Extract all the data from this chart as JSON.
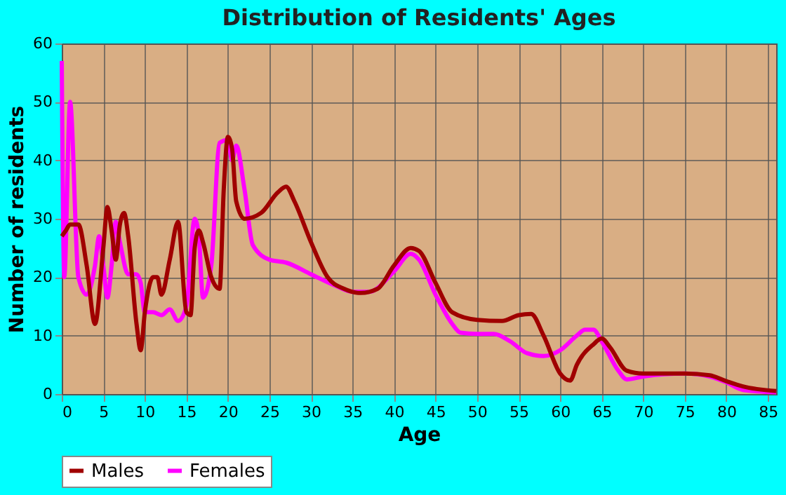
{
  "chart_data": {
    "type": "line",
    "title": "Distribution of Residents' Ages",
    "xlabel": "Age",
    "ylabel": "Number of residents",
    "xlim": [
      0,
      86
    ],
    "xticks": [
      0,
      5,
      10,
      15,
      20,
      25,
      30,
      35,
      40,
      45,
      50,
      55,
      60,
      65,
      70,
      75,
      80,
      85
    ],
    "ylim": [
      0,
      60
    ],
    "yticks": [
      0,
      10,
      20,
      30,
      40,
      50,
      60
    ],
    "grid": true,
    "legend": "bottom",
    "marker": "none",
    "line_style": "solid",
    "series": [
      {
        "name": "Males",
        "color": "#a00000",
        "x": [
          0,
          0.5,
          1,
          2,
          3,
          4,
          5,
          5.5,
          6,
          6.5,
          7,
          7.5,
          8,
          9,
          9.5,
          10,
          11,
          11.5,
          12,
          13,
          14,
          15,
          15.5,
          16,
          16.5,
          17,
          18,
          19,
          19.5,
          20,
          20.5,
          21,
          22,
          24,
          26,
          27,
          28,
          30,
          32,
          34,
          36,
          38,
          40,
          42,
          43,
          45,
          47,
          50,
          53,
          55,
          56.5,
          58,
          60,
          61.2,
          62,
          64,
          65,
          66,
          68,
          70,
          75,
          78,
          80,
          82,
          86
        ],
        "values": [
          27,
          28,
          29,
          29,
          22,
          12,
          25,
          32,
          28,
          23,
          29,
          31,
          27,
          12,
          7.5,
          14,
          20,
          20,
          17,
          23,
          29.5,
          14,
          13.5,
          25,
          28,
          26,
          20,
          18,
          35,
          44,
          42,
          33,
          30,
          31,
          34.5,
          35.5,
          33,
          26,
          20,
          18,
          17.3,
          18,
          22,
          25,
          24.5,
          19,
          14,
          12.7,
          12.5,
          13.5,
          13.7,
          10,
          3.5,
          2.3,
          5,
          8.5,
          9.5,
          8,
          4,
          3.5,
          3.5,
          3.2,
          2.2,
          1.3,
          0.5
        ]
      },
      {
        "name": "Females",
        "color": "#ff00ff",
        "x": [
          0,
          0.3,
          1,
          2,
          3,
          4,
          4.5,
          5,
          5.5,
          6,
          6.5,
          7,
          8,
          9,
          9.5,
          10,
          11,
          12,
          13,
          14,
          15,
          16,
          16.5,
          17,
          18,
          19,
          20,
          20.5,
          21,
          22,
          23,
          25,
          27,
          30,
          33,
          35,
          37,
          40,
          42,
          43,
          45,
          47,
          48,
          50,
          52,
          54,
          56,
          58,
          60,
          62,
          63,
          64,
          65,
          67,
          68,
          70,
          75,
          78,
          80,
          82,
          86
        ],
        "values": [
          57,
          20,
          50,
          20,
          17,
          22,
          27,
          22,
          16.5,
          22,
          29.5,
          26,
          20.5,
          20.5,
          19,
          14,
          14,
          13.5,
          14.5,
          12.5,
          15,
          30,
          27,
          16.5,
          22,
          43,
          43.5,
          40,
          42.5,
          35,
          25.5,
          23,
          22.5,
          20.5,
          18.5,
          17.5,
          17.5,
          21,
          24,
          23,
          17,
          12,
          10.5,
          10.3,
          10.3,
          9,
          7,
          6.5,
          7.5,
          10,
          11,
          11,
          9,
          4,
          2.5,
          3,
          3.5,
          3,
          2,
          0.7,
          0.3
        ]
      }
    ]
  }
}
